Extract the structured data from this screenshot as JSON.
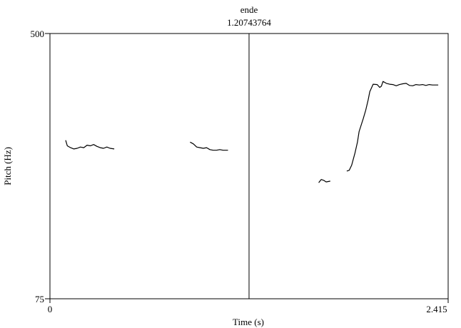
{
  "chart_data": {
    "type": "line",
    "title": "",
    "xlabel": "Time (s)",
    "ylabel": "Pitch (Hz)",
    "xlim": [
      0,
      2.415
    ],
    "ylim": [
      75,
      500
    ],
    "x_tick_labels": [
      "0",
      "2.415"
    ],
    "y_tick_labels": [
      "75",
      "500"
    ],
    "cursor": {
      "label": "ende",
      "value_text": "1.20743764",
      "x": 1.20743764
    },
    "line_color": "#000000",
    "grid": false,
    "legend": "none",
    "series": [
      {
        "points": [
          [
            0.095,
            233
          ],
          [
            0.105,
            224
          ],
          [
            0.125,
            221
          ],
          [
            0.145,
            219
          ],
          [
            0.165,
            220
          ],
          [
            0.185,
            222
          ],
          [
            0.205,
            221
          ],
          [
            0.225,
            225
          ],
          [
            0.245,
            224
          ],
          [
            0.265,
            226
          ],
          [
            0.285,
            223
          ],
          [
            0.305,
            221
          ],
          [
            0.325,
            220
          ],
          [
            0.345,
            222
          ],
          [
            0.365,
            220
          ],
          [
            0.39,
            219
          ]
        ]
      },
      {
        "points": [
          [
            0.85,
            230
          ],
          [
            0.87,
            227
          ],
          [
            0.89,
            222
          ],
          [
            0.91,
            221
          ],
          [
            0.93,
            220
          ],
          [
            0.95,
            221
          ],
          [
            0.97,
            218
          ],
          [
            0.99,
            217
          ],
          [
            1.01,
            217
          ],
          [
            1.03,
            218
          ],
          [
            1.05,
            217
          ],
          [
            1.08,
            217
          ]
        ]
      },
      {
        "points": [
          [
            1.63,
            172
          ],
          [
            1.645,
            176
          ],
          [
            1.66,
            175
          ],
          [
            1.675,
            173
          ],
          [
            1.7,
            174
          ]
        ]
      },
      {
        "points": [
          [
            1.8,
            187
          ],
          [
            1.815,
            188
          ],
          [
            1.83,
            195
          ],
          [
            1.85,
            213
          ],
          [
            1.865,
            230
          ],
          [
            1.875,
            248
          ],
          [
            1.9,
            272
          ],
          [
            1.915,
            289
          ],
          [
            1.93,
            311
          ],
          [
            1.94,
            330
          ],
          [
            1.96,
            348
          ],
          [
            1.985,
            347
          ],
          [
            2.0,
            340
          ],
          [
            2.01,
            343
          ],
          [
            2.02,
            355
          ],
          [
            2.04,
            350
          ],
          [
            2.06,
            348
          ],
          [
            2.08,
            347
          ],
          [
            2.1,
            344
          ],
          [
            2.12,
            347
          ],
          [
            2.14,
            349
          ],
          [
            2.16,
            350
          ],
          [
            2.18,
            345
          ],
          [
            2.2,
            344
          ],
          [
            2.22,
            347
          ],
          [
            2.24,
            346
          ],
          [
            2.26,
            347
          ],
          [
            2.28,
            345
          ],
          [
            2.3,
            347
          ],
          [
            2.32,
            346
          ],
          [
            2.355,
            346
          ]
        ]
      }
    ]
  }
}
